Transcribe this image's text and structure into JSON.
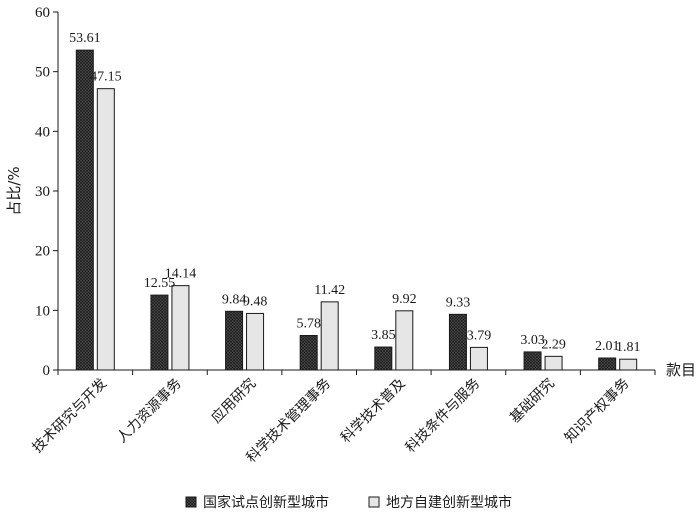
{
  "chart_data": {
    "type": "bar",
    "title": "",
    "xlabel": "款目",
    "ylabel": "占比/%",
    "ylim": [
      0,
      60
    ],
    "yticks": [
      0,
      10,
      20,
      30,
      40,
      50,
      60
    ],
    "grid": false,
    "legend_position": "bottom",
    "categories": [
      "技术研究与开发",
      "人力资源事务",
      "应用研究",
      "科学技术管理事务",
      "科学技术普及",
      "科技条件与服务",
      "基础研究",
      "知识产权事务"
    ],
    "series": [
      {
        "name": "国家试点创新型城市",
        "values": [
          53.61,
          12.55,
          9.84,
          5.78,
          3.85,
          9.33,
          3.03,
          2.01
        ],
        "labels": [
          "53.61",
          "12.55",
          "9.84",
          "5.78",
          "3.85",
          "9.33",
          "3.03",
          "2.01"
        ],
        "color": "#3a3a3a",
        "pattern": "crosshatch"
      },
      {
        "name": "地方自建创新型城市",
        "values": [
          47.15,
          14.14,
          9.48,
          11.42,
          9.92,
          3.79,
          2.29,
          1.81
        ],
        "labels": [
          "47.15",
          "14.14",
          "9.48",
          "11.42",
          "9.92",
          "3.79",
          "2.29",
          "1.81"
        ],
        "color": "#e6e6e6",
        "pattern": "solid"
      }
    ]
  }
}
